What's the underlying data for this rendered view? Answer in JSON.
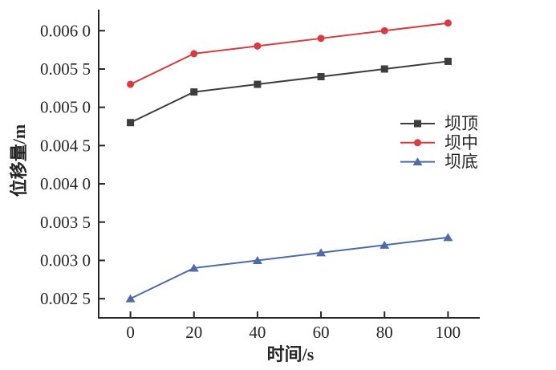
{
  "figure": {
    "background": "#ffffff",
    "axis_color": "#262626"
  },
  "chart_data": {
    "type": "line",
    "title": "",
    "xlabel": "时间/s",
    "ylabel": "位移量/m",
    "x": [
      0,
      20,
      40,
      60,
      80,
      100
    ],
    "series": [
      {
        "name": "坝顶",
        "values": [
          0.0048,
          0.0052,
          0.0053,
          0.0054,
          0.0055,
          0.0056
        ],
        "color": "#3d3d3d",
        "marker": "square"
      },
      {
        "name": "坝中",
        "values": [
          0.0053,
          0.0057,
          0.0058,
          0.0059,
          0.006,
          0.0061
        ],
        "color": "#d93b3e",
        "marker": "circle"
      },
      {
        "name": "坝底",
        "values": [
          0.0025,
          0.0029,
          0.003,
          0.0031,
          0.0032,
          0.0033
        ],
        "color": "#4d6ba6",
        "marker": "triangle"
      }
    ],
    "xlim": [
      -10,
      110
    ],
    "ylim": [
      0.00225,
      0.006265
    ],
    "xticks": {
      "values": [
        0,
        20,
        40,
        60,
        80,
        100
      ],
      "labels": [
        "0",
        "20",
        "40",
        "60",
        "80",
        "100"
      ]
    },
    "yticks": {
      "values": [
        0.0025,
        0.003,
        0.0035,
        0.004,
        0.0045,
        0.005,
        0.0055,
        0.006
      ],
      "labels": [
        "0.002 5",
        "0.003 0",
        "0.003 5",
        "0.004 0",
        "0.004 5",
        "0.005 0",
        "0.005 5",
        "0.006 0"
      ]
    },
    "grid": false,
    "tick_direction": "in",
    "spines": [
      "left",
      "bottom"
    ],
    "legend_position": "middle-right",
    "legend_frame": false
  }
}
